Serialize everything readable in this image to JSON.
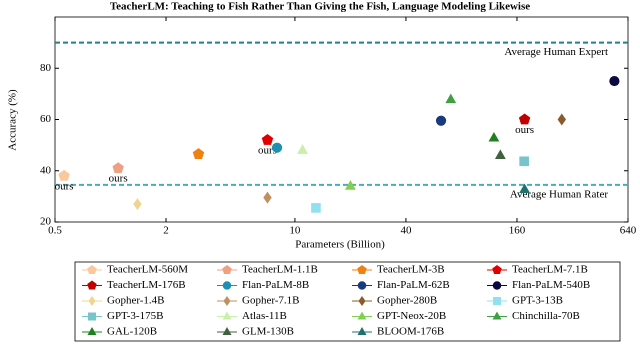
{
  "chart_data": {
    "type": "scatter",
    "title": "TeacherLM: Teaching to Fish Rather Than Giving the Fish, Language Modeling Likewise",
    "x_label": "Parameters (Billion)",
    "y_label": "Accuracy (%)",
    "xscale": "log",
    "xlim": [
      0.5,
      640
    ],
    "xticks": [
      0.5,
      2,
      10,
      40,
      160,
      640
    ],
    "ylim": [
      20,
      100
    ],
    "yticks": [
      20,
      40,
      60,
      80
    ],
    "reference_lines": [
      {
        "label": "Average Human Expert",
        "value": 90,
        "color": "#1f7f8f"
      },
      {
        "label": "Average Human Rater",
        "value": 34.5,
        "color": "#3fb0c0"
      }
    ],
    "series": [
      {
        "name": "TeacherLM-560M",
        "color": "#f9c89c",
        "marker": "pentagon",
        "x": [
          0.56
        ],
        "values": [
          38
        ],
        "annotation": "ours"
      },
      {
        "name": "TeacherLM-1.1B",
        "color": "#f0a082",
        "marker": "pentagon",
        "x": [
          1.1
        ],
        "values": [
          41
        ],
        "annotation": "ours"
      },
      {
        "name": "TeacherLM-3B",
        "color": "#f08010",
        "marker": "pentagon",
        "x": [
          3
        ],
        "values": [
          46.5
        ]
      },
      {
        "name": "TeacherLM-7.1B",
        "color": "#e00000",
        "marker": "pentagon",
        "x": [
          7.1
        ],
        "values": [
          52
        ],
        "annotation": "ours"
      },
      {
        "name": "TeacherLM-176B",
        "color": "#c00000",
        "marker": "pentagon",
        "x": [
          176
        ],
        "values": [
          60
        ],
        "annotation": "ours"
      },
      {
        "name": "Flan-PaLM-8B",
        "color": "#2090b0",
        "marker": "circle",
        "x": [
          8
        ],
        "values": [
          49
        ]
      },
      {
        "name": "Flan-PaLM-62B",
        "color": "#1a3a80",
        "marker": "circle",
        "x": [
          62
        ],
        "values": [
          59.5
        ]
      },
      {
        "name": "Flan-PaLM-540B",
        "color": "#0a0a40",
        "marker": "circle",
        "x": [
          540
        ],
        "values": [
          75
        ]
      },
      {
        "name": "Gopher-1.4B",
        "color": "#f0d590",
        "marker": "diamond",
        "x": [
          1.4
        ],
        "values": [
          27
        ]
      },
      {
        "name": "Gopher-7.1B",
        "color": "#c09060",
        "marker": "diamond",
        "x": [
          7.1
        ],
        "values": [
          29.5
        ]
      },
      {
        "name": "Gopher-280B",
        "color": "#8b5a2b",
        "marker": "diamond",
        "x": [
          280
        ],
        "values": [
          60
        ]
      },
      {
        "name": "GPT-3-13B",
        "color": "#90e0f0",
        "marker": "square",
        "x": [
          13
        ],
        "values": [
          25.5
        ]
      },
      {
        "name": "GPT-3-175B",
        "color": "#78c4cc",
        "marker": "square",
        "x": [
          175
        ],
        "values": [
          43.7
        ]
      },
      {
        "name": "Atlas-11B",
        "color": "#c8f0a8",
        "marker": "triangle",
        "x": [
          11
        ],
        "values": [
          48
        ]
      },
      {
        "name": "GPT-Neox-20B",
        "color": "#80d050",
        "marker": "triangle",
        "x": [
          20
        ],
        "values": [
          34
        ]
      },
      {
        "name": "Chinchilla-70B",
        "color": "#40a040",
        "marker": "triangle",
        "x": [
          70
        ],
        "values": [
          67.8
        ]
      },
      {
        "name": "GAL-120B",
        "color": "#208020",
        "marker": "triangle",
        "x": [
          120
        ],
        "values": [
          52.8
        ]
      },
      {
        "name": "GLM-130B",
        "color": "#406040",
        "marker": "triangle",
        "x": [
          130
        ],
        "values": [
          46
        ]
      },
      {
        "name": "BLOOM-176B",
        "color": "#207070",
        "marker": "triangle",
        "x": [
          176
        ],
        "values": [
          32.7
        ]
      }
    ]
  }
}
